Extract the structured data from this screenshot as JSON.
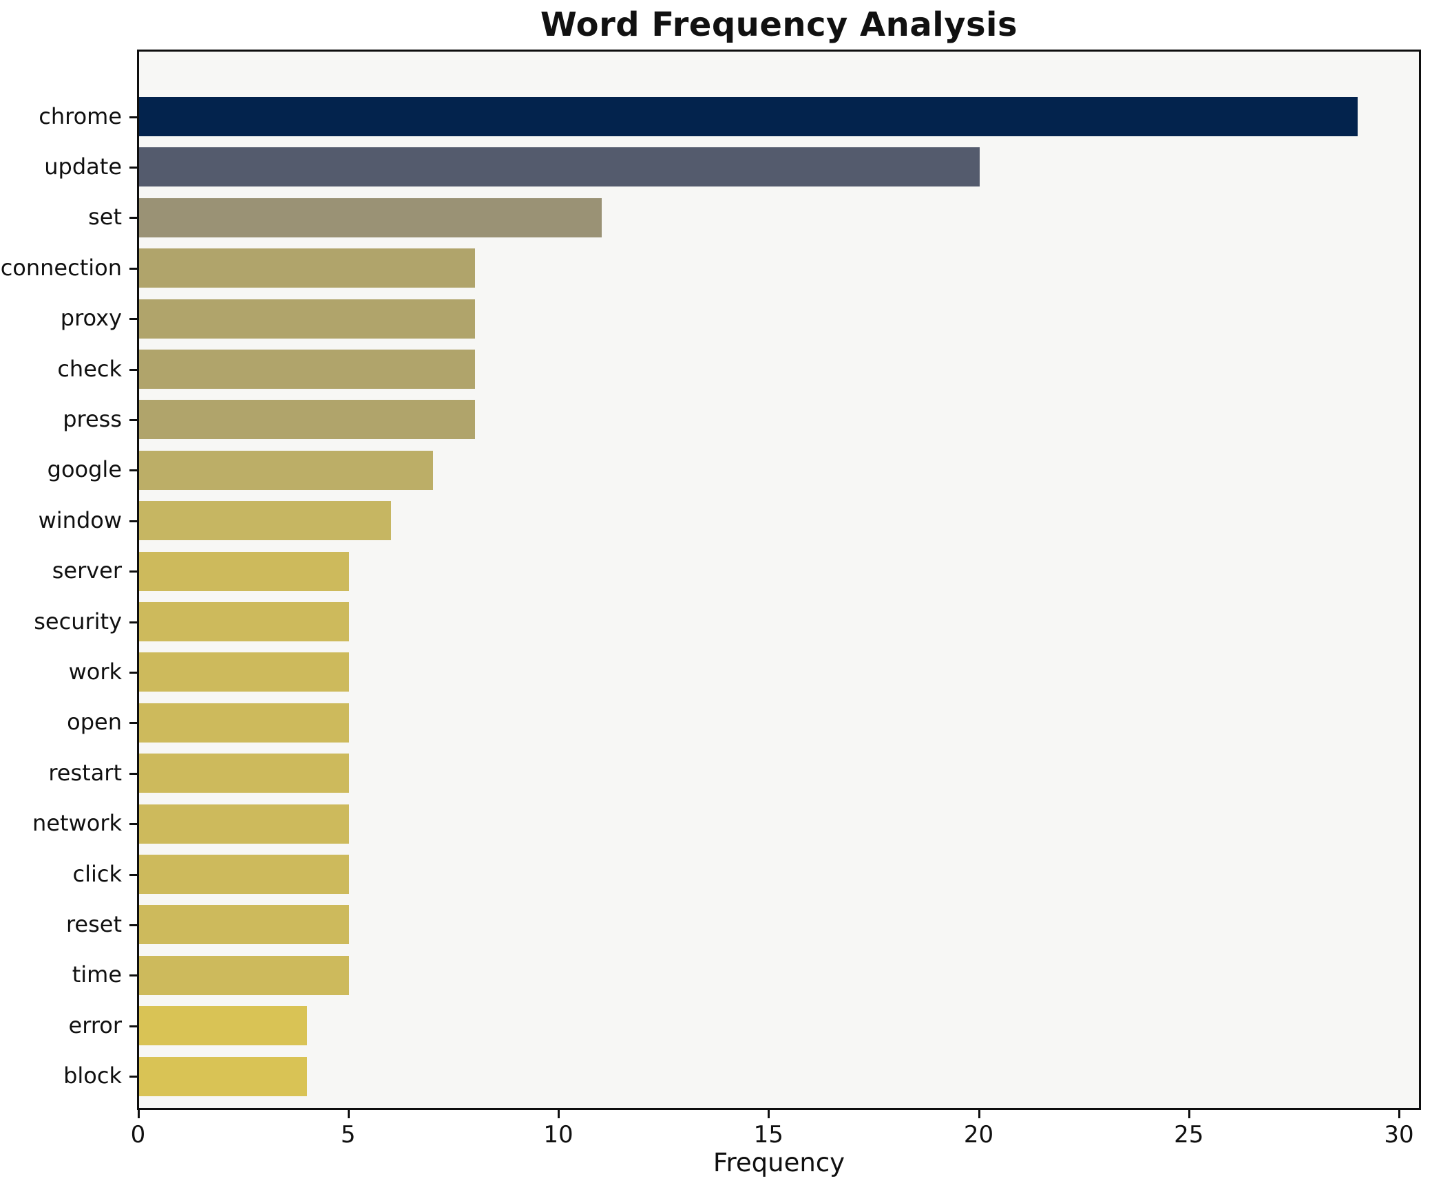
{
  "chart_data": {
    "type": "bar",
    "orientation": "horizontal",
    "title": "Word Frequency Analysis",
    "xlabel": "Frequency",
    "ylabel": "",
    "categories": [
      "chrome",
      "update",
      "set",
      "connection",
      "proxy",
      "check",
      "press",
      "google",
      "window",
      "server",
      "security",
      "work",
      "open",
      "restart",
      "network",
      "click",
      "reset",
      "time",
      "error",
      "block"
    ],
    "values": [
      29,
      20,
      11,
      8,
      8,
      8,
      8,
      7,
      6,
      5,
      5,
      5,
      5,
      5,
      5,
      5,
      5,
      5,
      4,
      4
    ],
    "bar_colors": [
      "#03234D",
      "#545B6D",
      "#9A9275",
      "#B0A46B",
      "#B0A46B",
      "#B0A46B",
      "#B0A46B",
      "#BCAE67",
      "#C6B662",
      "#CDBA5C",
      "#CDBA5C",
      "#CDBA5C",
      "#CDBA5C",
      "#CDBA5C",
      "#CDBA5C",
      "#CDBA5C",
      "#CDBA5C",
      "#CDBA5C",
      "#D9C355",
      "#D9C355"
    ],
    "xlim": [
      0,
      30.45
    ],
    "xticks": [
      0,
      5,
      10,
      15,
      20,
      25,
      30
    ],
    "grid": false,
    "legend": null,
    "plot_bg": "#f7f7f5",
    "fig_bg": "#ffffff",
    "spine_color": "#0e0e0e"
  }
}
